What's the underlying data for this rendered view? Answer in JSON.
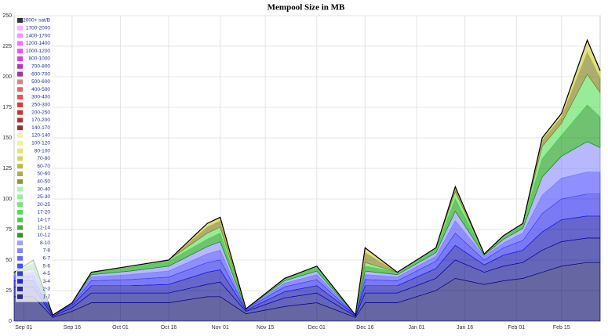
{
  "chart_data": {
    "type": "stacked_area",
    "title": "Mempool Size in MB",
    "x": [
      -3,
      3,
      9,
      15,
      21,
      33,
      45,
      57,
      61,
      69,
      81,
      91,
      103,
      106,
      116,
      128,
      134,
      143,
      149,
      155,
      161,
      167,
      175,
      179
    ],
    "xlim": [
      -3,
      179
    ],
    "xticks": [
      {
        "value": 0,
        "label": "Sep 01"
      },
      {
        "value": 15,
        "label": "Sep 16"
      },
      {
        "value": 30,
        "label": "Oct 01"
      },
      {
        "value": 45,
        "label": "Oct 16"
      },
      {
        "value": 61,
        "label": "Nov 01"
      },
      {
        "value": 75,
        "label": "Nov 15"
      },
      {
        "value": 91,
        "label": "Dec 01"
      },
      {
        "value": 106,
        "label": "Dec 16"
      },
      {
        "value": 122,
        "label": "Jan 01"
      },
      {
        "value": 137,
        "label": "Jan 16"
      },
      {
        "value": 153,
        "label": "Feb 01"
      },
      {
        "value": 167,
        "label": "Feb 15"
      }
    ],
    "ylim": [
      0,
      250
    ],
    "yticks": [
      0,
      25,
      50,
      75,
      100,
      125,
      150,
      175,
      200,
      225,
      250
    ],
    "grid": true,
    "legend": "upper-left",
    "series": [
      {
        "name": "2000+ sat/B",
        "color": "#000000",
        "values": [
          0,
          0,
          0,
          0,
          0,
          0,
          0,
          0,
          0,
          0,
          0,
          0,
          0,
          0,
          0,
          0,
          0,
          0,
          0,
          0,
          0,
          0,
          0,
          0
        ]
      },
      {
        "name": "1700-2000",
        "color": "#ff99ff",
        "values": [
          0,
          0,
          0,
          0,
          0,
          0,
          0,
          0,
          0,
          0,
          0,
          0,
          0,
          0,
          0,
          0,
          0,
          0,
          0,
          0,
          0,
          0,
          0,
          0
        ]
      },
      {
        "name": "1400-1700",
        "color": "#ff77ff",
        "values": [
          0,
          0,
          0,
          0,
          0,
          0,
          0,
          0,
          0,
          0,
          0,
          0,
          0,
          0,
          0,
          0,
          0,
          0,
          0,
          0,
          0,
          0,
          0,
          0
        ]
      },
      {
        "name": "1200-1400",
        "color": "#ff44ff",
        "values": [
          0,
          0,
          0,
          0,
          0,
          0,
          0,
          0,
          0,
          0,
          0,
          0,
          0,
          0,
          0,
          0,
          0,
          0,
          0,
          0,
          0,
          0,
          0,
          0
        ]
      },
      {
        "name": "1000-1200",
        "color": "#ee22ee",
        "values": [
          0,
          0,
          0,
          0,
          0,
          0,
          0,
          0,
          0,
          0,
          0,
          0,
          0,
          0,
          0,
          0,
          0,
          0,
          0,
          0,
          0,
          0,
          0,
          0
        ]
      },
      {
        "name": "800-1000",
        "color": "#cc11cc",
        "values": [
          0,
          0,
          0,
          0,
          0,
          0,
          0,
          0,
          0,
          0,
          0,
          0,
          0,
          0,
          0,
          0,
          0,
          0,
          0,
          0,
          0,
          0,
          0,
          0
        ]
      },
      {
        "name": "700-800",
        "color": "#aa00aa",
        "values": [
          0,
          0,
          0,
          0,
          0,
          0,
          0,
          0,
          0,
          0,
          0,
          0,
          0,
          0,
          0,
          0,
          0,
          0,
          0,
          0,
          0,
          0,
          0,
          0
        ]
      },
      {
        "name": "600-700",
        "color": "#880088",
        "values": [
          0,
          0,
          0,
          0,
          0,
          0,
          0,
          0,
          0,
          0,
          0,
          0,
          0,
          0,
          0,
          0,
          0,
          0,
          0,
          0,
          0,
          0,
          0,
          0
        ]
      },
      {
        "name": "500-600",
        "color": "#cc6666",
        "values": [
          0,
          0,
          0,
          0,
          0,
          0,
          0,
          0,
          0,
          0,
          0,
          0,
          0,
          0,
          0,
          0,
          0,
          0,
          0,
          0,
          0,
          0,
          0,
          0
        ]
      },
      {
        "name": "400-500",
        "color": "#dd4444",
        "values": [
          0,
          0,
          0,
          0,
          0,
          0,
          0,
          0,
          0,
          0,
          0,
          0,
          0,
          0,
          0,
          0,
          0,
          0,
          0,
          0,
          0,
          0,
          0,
          0
        ]
      },
      {
        "name": "300-400",
        "color": "#ee2222",
        "values": [
          0,
          0,
          0,
          0,
          0,
          0,
          0,
          0,
          0,
          0,
          0,
          0,
          0,
          0,
          0,
          0,
          0,
          0,
          0,
          0,
          0,
          0,
          0,
          0
        ]
      },
      {
        "name": "250-300",
        "color": "#dd0000",
        "values": [
          0,
          0,
          0,
          0,
          0,
          0,
          0,
          0,
          0,
          0,
          0,
          0,
          0,
          0,
          0,
          0,
          0,
          0,
          0,
          0,
          0,
          0,
          0,
          0
        ]
      },
      {
        "name": "200-250",
        "color": "#bb0000",
        "values": [
          0,
          0,
          0,
          0,
          0,
          0,
          0,
          0,
          0,
          0,
          0,
          0,
          0,
          0,
          0,
          0,
          0,
          0,
          0,
          0,
          0,
          0,
          0,
          0
        ]
      },
      {
        "name": "170-200",
        "color": "#990000",
        "values": [
          0,
          0,
          0,
          0,
          0,
          0,
          0,
          0,
          0,
          0,
          0,
          0,
          0,
          0,
          0,
          0,
          0,
          0,
          0,
          0,
          0,
          0,
          0,
          0
        ]
      },
      {
        "name": "140-170",
        "color": "#770000",
        "values": [
          0,
          0,
          0,
          0,
          0,
          0,
          0,
          0,
          0,
          0,
          0,
          0,
          0,
          0,
          0,
          0,
          0,
          0,
          0,
          0,
          0,
          0,
          0,
          0
        ]
      },
      {
        "name": "120-140",
        "color": "#eeee99",
        "values": [
          0,
          0,
          0,
          0,
          0,
          0,
          0,
          0,
          0,
          0,
          0,
          0,
          0,
          0,
          0,
          0,
          0,
          0,
          0,
          0,
          0,
          0,
          0,
          0
        ]
      },
      {
        "name": "100-120",
        "color": "#eeee77",
        "values": [
          0,
          0,
          0,
          0,
          0,
          0,
          0,
          0,
          0,
          0,
          0,
          0,
          0,
          0,
          0,
          0,
          0,
          0,
          0,
          0,
          0,
          0,
          0,
          0
        ]
      },
      {
        "name": "80-100",
        "color": "#dddd55",
        "values": [
          0,
          0,
          0,
          0,
          0,
          0,
          0,
          0,
          0,
          0,
          0,
          0,
          0,
          0,
          0,
          0,
          0,
          0,
          0,
          0,
          0,
          0,
          0,
          0
        ]
      },
      {
        "name": "70-80",
        "color": "#cccc33",
        "values": [
          0,
          0,
          0,
          0,
          0,
          0,
          0,
          3,
          3,
          0,
          0,
          0,
          0,
          4,
          0,
          0,
          1,
          0,
          0,
          0,
          2,
          3,
          10,
          6
        ]
      },
      {
        "name": "60-70",
        "color": "#aaaa22",
        "values": [
          0,
          0,
          0,
          0,
          0,
          0,
          0,
          0,
          0,
          0,
          0,
          0,
          0,
          0,
          0,
          0,
          0,
          0,
          0,
          0,
          0,
          0,
          0,
          0
        ]
      },
      {
        "name": "50-60",
        "color": "#999922",
        "values": [
          0,
          0,
          0,
          0,
          0,
          0,
          0,
          0,
          0,
          0,
          0,
          0,
          0,
          0,
          0,
          0,
          0,
          0,
          0,
          0,
          0,
          0,
          0,
          0
        ]
      },
      {
        "name": "40-50",
        "color": "#777711",
        "values": [
          0,
          0,
          0,
          0,
          0,
          0,
          0,
          5,
          5,
          0,
          0,
          0,
          0,
          8,
          0,
          0,
          3,
          0,
          0,
          0,
          5,
          5,
          18,
          12
        ]
      },
      {
        "name": "30-40",
        "color": "#99ee99",
        "values": [
          0,
          0,
          0,
          0,
          0,
          0,
          0,
          0,
          0,
          0,
          0,
          0,
          0,
          0,
          0,
          0,
          0,
          0,
          0,
          0,
          0,
          0,
          0,
          0
        ]
      },
      {
        "name": "25-30",
        "color": "#77ee77",
        "values": [
          0,
          0,
          0,
          0,
          0,
          0,
          0,
          0,
          0,
          0,
          0,
          0,
          0,
          0,
          0,
          0,
          0,
          0,
          0,
          0,
          0,
          0,
          0,
          0
        ]
      },
      {
        "name": "20-25",
        "color": "#55dd55",
        "values": [
          0,
          3,
          0,
          0,
          0,
          1,
          1,
          5,
          5,
          0,
          0,
          1,
          0,
          3,
          0,
          1,
          6,
          0,
          0,
          0,
          10,
          10,
          25,
          20
        ]
      },
      {
        "name": "17-20",
        "color": "#33cc33",
        "values": [
          0,
          0,
          0,
          0,
          0,
          0,
          0,
          0,
          0,
          0,
          0,
          0,
          0,
          0,
          0,
          0,
          0,
          0,
          0,
          0,
          0,
          0,
          0,
          0
        ]
      },
      {
        "name": "14-17",
        "color": "#22bb22",
        "values": [
          0,
          0,
          0,
          0,
          0,
          0,
          0,
          0,
          0,
          0,
          0,
          0,
          0,
          0,
          0,
          0,
          0,
          0,
          0,
          0,
          0,
          0,
          0,
          0
        ]
      },
      {
        "name": "12-14",
        "color": "#119911",
        "values": [
          1,
          4,
          0,
          0,
          2,
          3,
          4,
          6,
          7,
          0,
          2,
          3,
          0,
          4,
          2,
          3,
          10,
          1,
          3,
          4,
          15,
          17,
          30,
          25
        ]
      },
      {
        "name": "10-12",
        "color": "#007700",
        "values": [
          0,
          0,
          0,
          0,
          0,
          0,
          0,
          0,
          0,
          0,
          0,
          0,
          0,
          0,
          0,
          0,
          0,
          0,
          0,
          0,
          0,
          0,
          0,
          0
        ]
      },
      {
        "name": "8-10",
        "color": "#8888ff",
        "values": [
          1,
          3,
          0,
          0,
          2,
          3,
          4,
          6,
          7,
          0,
          2,
          3,
          0,
          3,
          2,
          3,
          8,
          1,
          3,
          4,
          15,
          18,
          25,
          20
        ]
      },
      {
        "name": "7-8",
        "color": "#6666ff",
        "values": [
          0,
          0,
          0,
          0,
          0,
          0,
          0,
          0,
          0,
          0,
          0,
          0,
          0,
          0,
          0,
          0,
          0,
          0,
          0,
          0,
          0,
          0,
          0,
          0
        ]
      },
      {
        "name": "6-7",
        "color": "#4444ff",
        "values": [
          2,
          3,
          0,
          1,
          3,
          4,
          5,
          7,
          8,
          0,
          3,
          4,
          0,
          4,
          3,
          4,
          10,
          3,
          4,
          6,
          15,
          17,
          18,
          18
        ]
      },
      {
        "name": "5-6",
        "color": "#2222ee",
        "values": [
          3,
          4,
          0,
          1,
          4,
          5,
          6,
          8,
          8,
          1,
          4,
          5,
          0,
          5,
          4,
          6,
          10,
          4,
          6,
          8,
          15,
          17,
          18,
          18
        ]
      },
      {
        "name": "4-5",
        "color": "#1111cc",
        "values": [
          0,
          0,
          0,
          0,
          0,
          0,
          0,
          0,
          0,
          0,
          0,
          0,
          0,
          0,
          0,
          0,
          0,
          0,
          0,
          0,
          0,
          0,
          0,
          0
        ]
      },
      {
        "name": "3-4",
        "color": "#0000aa",
        "values": [
          5,
          5,
          1,
          2,
          6,
          6,
          7,
          10,
          10,
          1,
          5,
          6,
          1,
          6,
          6,
          8,
          12,
          6,
          9,
          10,
          15,
          18,
          18,
          18
        ]
      },
      {
        "name": "2-3",
        "color": "#000088",
        "values": [
          8,
          8,
          1,
          3,
          8,
          8,
          8,
          10,
          12,
          2,
          7,
          8,
          1,
          8,
          8,
          10,
          15,
          10,
          12,
          13,
          18,
          20,
          20,
          20
        ]
      },
      {
        "name": "1-2",
        "color": "#000066",
        "values": [
          20,
          20,
          3,
          8,
          15,
          15,
          15,
          20,
          20,
          6,
          12,
          15,
          3,
          15,
          15,
          25,
          35,
          30,
          33,
          35,
          40,
          45,
          48,
          48
        ]
      }
    ]
  }
}
